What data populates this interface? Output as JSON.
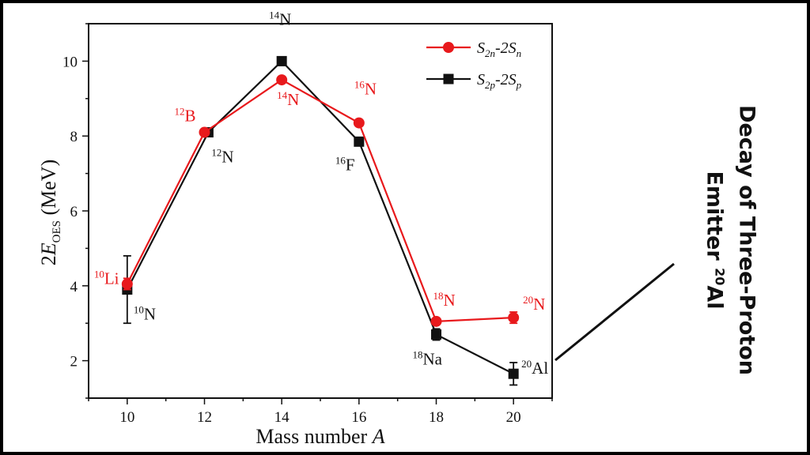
{
  "chart_data": {
    "type": "line",
    "xlabel": "Mass number",
    "xlabel_var": "A",
    "ylabel_prefix": "2",
    "ylabel_var": "E",
    "ylabel_sub": "OES",
    "ylabel_unit": "(MeV)",
    "xlim": [
      9,
      21
    ],
    "ylim": [
      1,
      11
    ],
    "xticks": [
      10,
      12,
      14,
      16,
      18,
      20
    ],
    "yticks": [
      2,
      4,
      6,
      8,
      10
    ],
    "series": [
      {
        "name": "S2n-2Sn",
        "legend_parts": [
          "S",
          "2n",
          "-2S",
          "n"
        ],
        "color": "#e8191c",
        "marker": "circle",
        "x": [
          10,
          12,
          14,
          16,
          18,
          20
        ],
        "y": [
          4.05,
          8.1,
          9.5,
          8.35,
          3.05,
          3.15
        ],
        "err": [
          0.15,
          0,
          0,
          0,
          0,
          0.15
        ],
        "labels": [
          {
            "sup": "10",
            "text": "Li"
          },
          {
            "sup": "12",
            "text": "B"
          },
          {
            "sup": "14",
            "text": "N"
          },
          {
            "sup": "16",
            "text": "N"
          },
          {
            "sup": "18",
            "text": "N"
          },
          {
            "sup": "20",
            "text": "N"
          }
        ]
      },
      {
        "name": "S2p-2Sp",
        "legend_parts": [
          "S",
          "2p",
          "-2S",
          "p"
        ],
        "color": "#111111",
        "marker": "square",
        "x": [
          10,
          12.1,
          14,
          16,
          18,
          20
        ],
        "y": [
          3.9,
          8.1,
          10.0,
          7.85,
          2.7,
          1.65
        ],
        "err": [
          0.9,
          0,
          0,
          0,
          0.15,
          0.3
        ],
        "labels": [
          {
            "sup": "10",
            "text": "N"
          },
          {
            "sup": "12",
            "text": "N"
          },
          {
            "sup": "14",
            "text": "N"
          },
          {
            "sup": "16",
            "text": "F"
          },
          {
            "sup": "18",
            "text": "Na"
          },
          {
            "sup": "20",
            "text": "Al"
          }
        ]
      }
    ]
  },
  "annotation": {
    "line1": "Decay of Three-Proton",
    "line2_prefix": "Emitter ",
    "line2_sup": "20",
    "line2_suffix": "Al"
  }
}
